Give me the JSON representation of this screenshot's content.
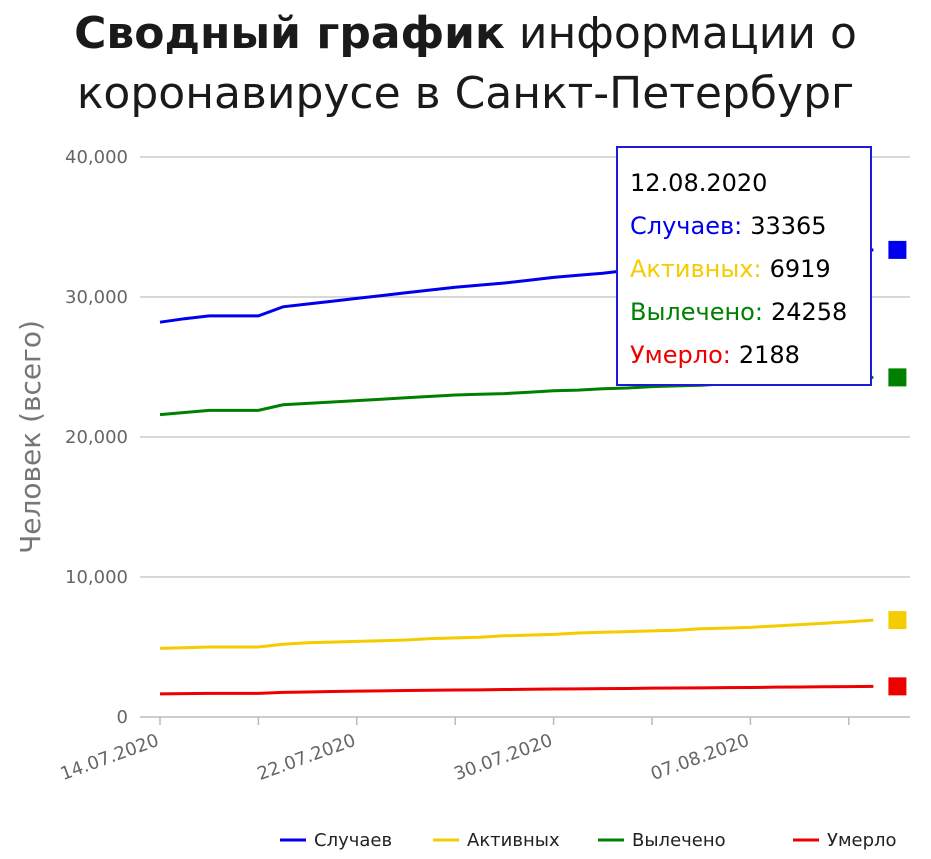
{
  "title": {
    "bold": "Сводный график",
    "normal_line1": " информации о",
    "line2": "коронавирусе в Санкт-Петербург"
  },
  "chart_data": {
    "type": "line",
    "ylabel": "Человек (всего)",
    "xlabel": "",
    "ylim": [
      0,
      40000
    ],
    "y_ticks": [
      "0",
      "10,000",
      "20,000",
      "30,000",
      "40,000"
    ],
    "x_ticks": [
      "14.07.2020",
      "22.07.2020",
      "30.07.2020",
      "07.08.2020"
    ],
    "grid": true,
    "legend_position": "bottom",
    "x": [
      "14.07.2020",
      "15.07.2020",
      "16.07.2020",
      "17.07.2020",
      "18.07.2020",
      "19.07.2020",
      "20.07.2020",
      "21.07.2020",
      "22.07.2020",
      "23.07.2020",
      "24.07.2020",
      "25.07.2020",
      "26.07.2020",
      "27.07.2020",
      "28.07.2020",
      "29.07.2020",
      "30.07.2020",
      "31.07.2020",
      "01.08.2020",
      "02.08.2020",
      "03.08.2020",
      "04.08.2020",
      "05.08.2020",
      "06.08.2020",
      "07.08.2020",
      "08.08.2020",
      "09.08.2020",
      "10.08.2020",
      "11.08.2020",
      "12.08.2020"
    ],
    "series": [
      {
        "name": "Случаев",
        "color": "#0000ee",
        "values": [
          28200,
          28450,
          28650,
          28650,
          28650,
          29300,
          29500,
          29700,
          29900,
          30100,
          30300,
          30500,
          30700,
          30850,
          31000,
          31200,
          31400,
          31550,
          31700,
          31900,
          32050,
          32200,
          32400,
          32550,
          32700,
          32850,
          33000,
          33150,
          33250,
          33365
        ]
      },
      {
        "name": "Активных",
        "color": "#f5cc00",
        "values": [
          4900,
          4950,
          5000,
          5000,
          5000,
          5200,
          5300,
          5350,
          5400,
          5450,
          5500,
          5600,
          5650,
          5700,
          5800,
          5850,
          5900,
          6000,
          6050,
          6100,
          6150,
          6200,
          6300,
          6350,
          6400,
          6500,
          6600,
          6700,
          6800,
          6919
        ]
      },
      {
        "name": "Вылечено",
        "color": "#008000",
        "values": [
          21600,
          21750,
          21900,
          21900,
          21900,
          22300,
          22400,
          22500,
          22600,
          22700,
          22800,
          22900,
          23000,
          23050,
          23100,
          23200,
          23300,
          23350,
          23450,
          23500,
          23600,
          23650,
          23700,
          23800,
          23850,
          23950,
          24050,
          24100,
          24150,
          24258
        ]
      },
      {
        "name": "Умерло",
        "color": "#ee0000",
        "values": [
          1650,
          1670,
          1690,
          1690,
          1690,
          1760,
          1790,
          1820,
          1850,
          1870,
          1890,
          1910,
          1930,
          1940,
          1960,
          1980,
          2000,
          2010,
          2030,
          2040,
          2060,
          2070,
          2080,
          2100,
          2110,
          2130,
          2140,
          2160,
          2170,
          2188
        ]
      }
    ]
  },
  "tooltip": {
    "date": "12.08.2020",
    "rows": [
      {
        "label": "Случаев:",
        "value": "33365",
        "color": "#0000ee"
      },
      {
        "label": "Активных:",
        "value": "6919",
        "color": "#f5cc00"
      },
      {
        "label": "Вылечено:",
        "value": "24258",
        "color": "#008000"
      },
      {
        "label": "Умерло:",
        "value": "2188",
        "color": "#ee0000"
      }
    ]
  }
}
